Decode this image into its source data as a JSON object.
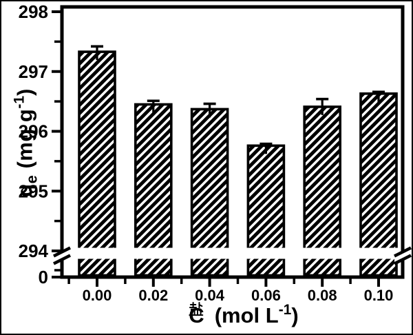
{
  "figure": {
    "background": "#ffffff",
    "ink_color": "#000000",
    "bar_fill": "#ffffff"
  },
  "chart_data": {
    "type": "bar",
    "categories": [
      "0.00",
      "0.02",
      "0.04",
      "0.06",
      "0.08",
      "0.10"
    ],
    "values": [
      297.33,
      296.45,
      296.37,
      295.76,
      296.41,
      296.63
    ],
    "errors": [
      0.09,
      0.06,
      0.09,
      0.03,
      0.13,
      0.03
    ],
    "title": "",
    "xlabel": "C盐 (mol L-1)",
    "ylabel": "qe (mg g-1)",
    "y_axis": {
      "broken": true,
      "upper_range": [
        294,
        298
      ],
      "major_ticks": [
        "298",
        "297",
        "296",
        "295",
        "294"
      ],
      "minor_tick_values": [
        297.5,
        296.5,
        295.5,
        294.5
      ],
      "zero_label": "0"
    },
    "x_axis": {
      "unit": "mol L-1",
      "tick_labels": [
        "0.00",
        "0.02",
        "0.04",
        "0.06",
        "0.08",
        "0.10"
      ]
    },
    "legend": null,
    "grid": false,
    "bar_style": {
      "hatch": "diagonal-forward",
      "hatch_color": "#000000",
      "fill": "#ffffff"
    }
  },
  "labels": {
    "y_title": {
      "symbol": "q",
      "sub": "e",
      "rest": " (mg g",
      "sup": "-1",
      "close": ")"
    },
    "x_title": {
      "symbol": "C",
      "sub": "盐",
      "rest": "(mol L",
      "sup": "-1",
      "close": ")"
    }
  }
}
